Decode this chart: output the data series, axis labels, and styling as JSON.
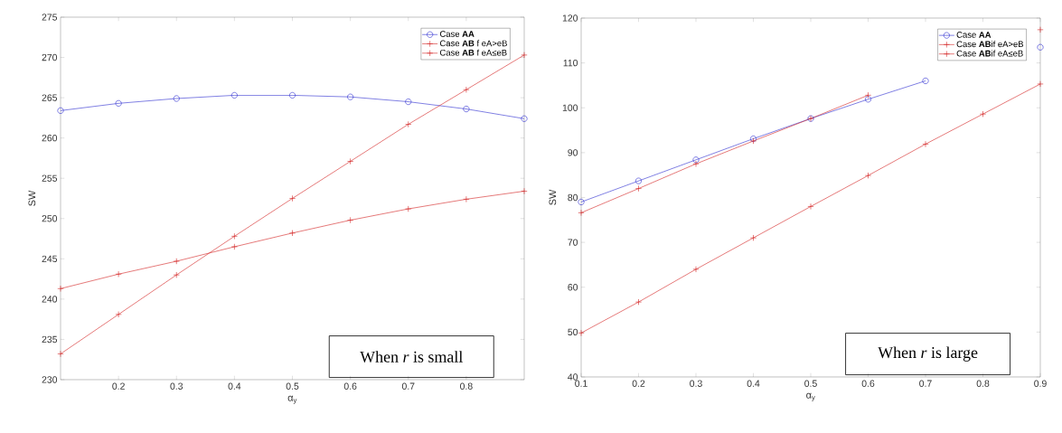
{
  "chart_data": [
    {
      "type": "line",
      "xlabel": "α$_{y}$",
      "ylabel": "SW",
      "x": [
        0.1,
        0.2,
        0.3,
        0.4,
        0.5,
        0.6,
        0.7,
        0.8,
        0.9
      ],
      "series": [
        {
          "name": "Case **AA**",
          "color": "#2b2bd0",
          "marker": "circle",
          "values": [
            263.4,
            264.3,
            264.9,
            265.3,
            265.3,
            265.1,
            264.5,
            263.6,
            262.4
          ]
        },
        {
          "name": "Case **AB** f eA>eB",
          "color": "#d42020",
          "marker": "cross",
          "values": [
            241.3,
            243.1,
            244.7,
            246.5,
            248.2,
            249.8,
            251.2,
            252.4,
            253.4
          ]
        },
        {
          "name": "Case **AB** f eA≤eB",
          "color": "#d42020",
          "marker": "cross",
          "values": [
            233.2,
            238.1,
            243.0,
            247.8,
            252.5,
            257.1,
            261.7,
            266.0,
            270.3
          ]
        }
      ],
      "xlim": [
        0.1,
        0.9
      ],
      "ylim": [
        230,
        275
      ],
      "xticks": [
        0.2,
        0.3,
        0.4,
        0.5,
        0.6,
        0.7,
        0.8
      ],
      "yticks": [
        230,
        235,
        240,
        245,
        250,
        255,
        260,
        265,
        270,
        275
      ],
      "grid": false,
      "legend": "top right",
      "line_style": "solid",
      "annotations": [
        "When *r* is small"
      ]
    },
    {
      "type": "line",
      "xlabel": "α$_{y}$",
      "ylabel": "SW",
      "x": [
        0.1,
        0.2,
        0.3,
        0.4,
        0.5,
        0.6,
        0.7,
        0.8,
        0.9
      ],
      "series": [
        {
          "name": "Case **AA**",
          "color": "#2b2bd0",
          "marker": "circle",
          "values": [
            79.0,
            83.7,
            88.4,
            93.1,
            97.6,
            101.9,
            106.0,
            null,
            113.5
          ]
        },
        {
          "name": "Case **AB**if eA>eB",
          "color": "#d42020",
          "marker": "cross",
          "values": [
            76.6,
            82.0,
            87.5,
            92.6,
            97.6,
            102.8,
            null,
            null,
            117.4
          ]
        },
        {
          "name": "Case **AB**if eA≤eB",
          "color": "#d42020",
          "marker": "cross",
          "values": [
            49.8,
            56.7,
            64.0,
            71.0,
            78.0,
            84.9,
            91.9,
            98.6,
            105.3
          ]
        }
      ],
      "xlim": [
        0.1,
        0.9
      ],
      "ylim": [
        40,
        120
      ],
      "xticks": [
        0.1,
        0.2,
        0.3,
        0.4,
        0.5,
        0.6,
        0.7,
        0.8,
        0.9
      ],
      "yticks": [
        40,
        50,
        60,
        70,
        80,
        90,
        100,
        110,
        120
      ],
      "grid": false,
      "legend": "top right",
      "line_style": "solid",
      "annotations": [
        "When *r* is large"
      ]
    }
  ]
}
